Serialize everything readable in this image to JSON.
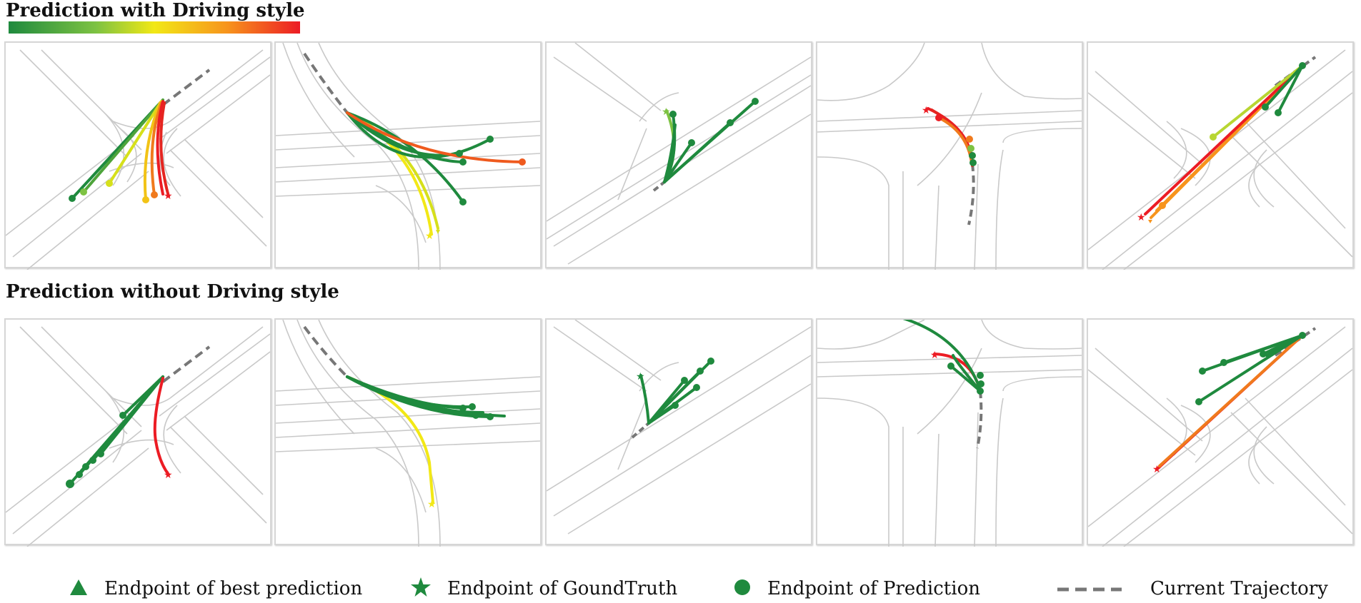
{
  "titles": {
    "with_style": "Prediction with Driving style",
    "without_style": "Prediction without Driving style"
  },
  "colors": {
    "green": "#1f8a3e",
    "light_green": "#7dc242",
    "yellow": "#f2e816",
    "orange": "#f7941d",
    "red": "#ec1c24",
    "road": "#c9c9c9",
    "current_trajectory": "#777777"
  },
  "legend": {
    "best_prediction": "Endpoint of best prediction",
    "ground_truth": "Endpoint of GoundTruth",
    "prediction": "Endpoint of Prediction",
    "current_trajectory": "Current Trajectory"
  },
  "icons": {
    "best_prediction": "triangle-icon",
    "ground_truth": "star-icon",
    "prediction": "circle-icon",
    "current_trajectory": "dashed-line-icon"
  }
}
